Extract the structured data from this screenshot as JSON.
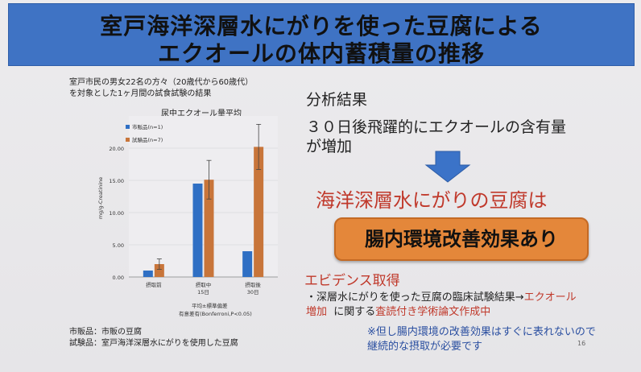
{
  "slide": {
    "title_line1": "室戸海洋深層水にがりを使った豆腐による",
    "title_line2": "エクオールの体内蓄積量の推移",
    "study_note_line1": "室戸市民の男女22名の方々（20歳代から60歳代）",
    "study_note_line2": "を対象とした1ヶ月間の試食試験の結果",
    "analysis_heading": "分析結果",
    "result_line1": "３０日後飛躍的にエクオールの含有量",
    "result_line2": "が増加",
    "headline": "海洋深層水にがりの豆腐は",
    "highlight_button": "腸内環境改善効果あり",
    "evidence_title": "エビデンス取得",
    "evidence_line1_a": "・深層水にがりを使った豆腐の臨床試験結果→",
    "evidence_line1_b": "エクオール",
    "evidence_line2_a": "増加",
    "evidence_line2_b": "に関する",
    "evidence_line2_c": "査読付き学術論文作成中",
    "footnote_line1": "※但し腸内環境の改善効果はすぐに表れないので",
    "footnote_line2": "継続的な摂取が必要です",
    "page_number": "16",
    "legend_note_line1": "市販品：市販の豆腐",
    "legend_note_line2": "試験品：室戸海洋深層水にがりを使用した豆腐",
    "colors": {
      "title_bar": "#3f73c4",
      "accent_red": "#c0392b",
      "button_orange": "#e4873a",
      "series_blue": "#2f6fc4",
      "series_orange": "#c8753a"
    }
  },
  "chart_data": {
    "type": "bar",
    "title": "尿中エクオール量平均",
    "ylabel": "mg/g-Creatinine",
    "ylim": [
      0,
      25
    ],
    "yticks": [
      "0.00",
      "5.00",
      "10.00",
      "15.00",
      "20.00"
    ],
    "categories": [
      "摂取前",
      "摂取中\n15日",
      "摂取後\n30日"
    ],
    "category_labels": [
      [
        "摂取前"
      ],
      [
        "摂取中",
        "15日"
      ],
      [
        "摂取後",
        "30日"
      ]
    ],
    "series": [
      {
        "name": "市販品(n=1)",
        "values": [
          1.0,
          14.5,
          4.0
        ],
        "errors": [
          0,
          0,
          0
        ]
      },
      {
        "name": "試験品(n=7)",
        "values": [
          2.0,
          15.1,
          20.2
        ],
        "errors": [
          0.8,
          3.0,
          3.5
        ]
      }
    ],
    "note_line1": "平均±標準偏差",
    "note_line2": "有意差有(Bonferroni,P<0.05)",
    "legend_position": "top-left"
  }
}
